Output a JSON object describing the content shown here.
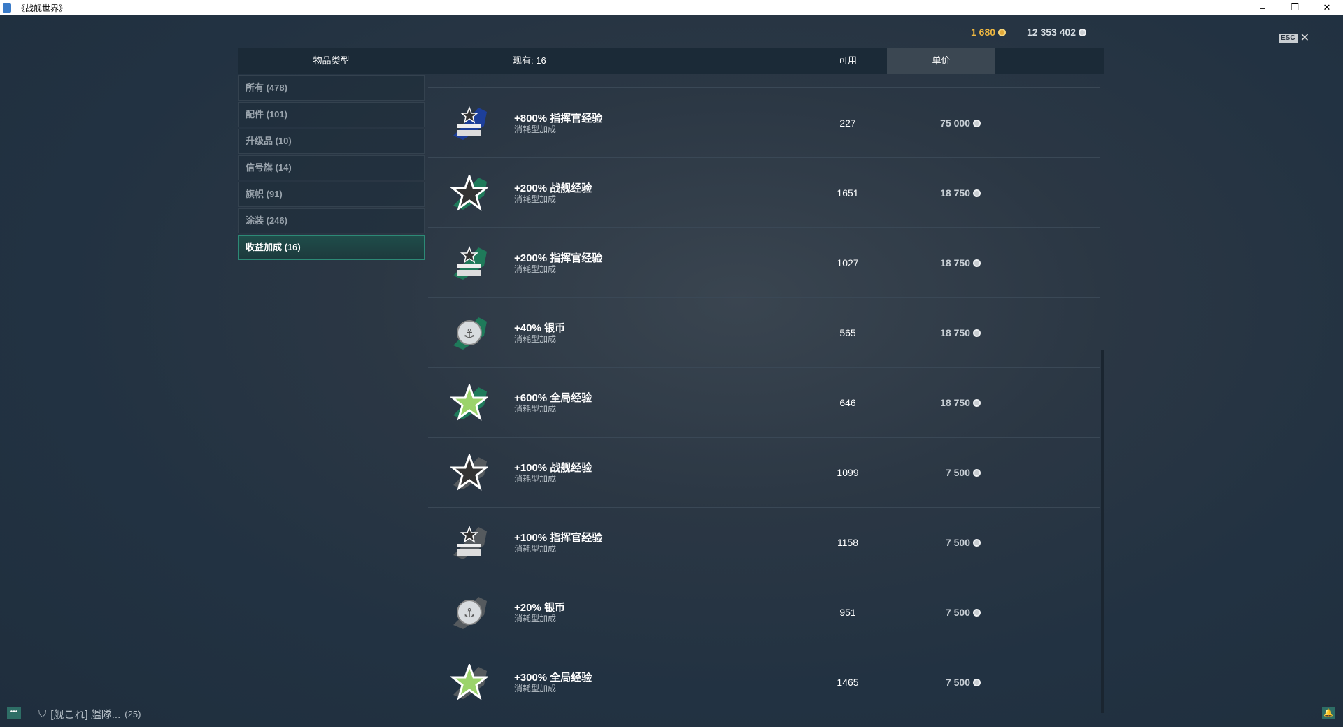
{
  "window": {
    "title": "《战舰世界》",
    "controls": [
      "–",
      "❐",
      "✕"
    ]
  },
  "currency": {
    "gold": "1 680",
    "silver": "12 353 402"
  },
  "esc": {
    "key": "ESC",
    "close": "✕"
  },
  "header": {
    "type_label": "物品类型",
    "count_label": "现有: 16",
    "available_label": "可用",
    "price_label": "单价"
  },
  "sidebar": {
    "items": [
      {
        "label": "所有 (478)"
      },
      {
        "label": "配件 (101)"
      },
      {
        "label": "升级品 (10)"
      },
      {
        "label": "信号旗 (14)"
      },
      {
        "label": "旗帜 (91)"
      },
      {
        "label": "涂装 (246)"
      },
      {
        "label": "收益加成 (16)",
        "active": true
      }
    ]
  },
  "items": [
    {
      "name": "+800% 指挥官经验",
      "type": "消耗型加成",
      "available": "227",
      "price": "75 000",
      "icon": "commander-xp-icon",
      "color": "#1d3f9a"
    },
    {
      "name": "+200% 战舰经验",
      "type": "消耗型加成",
      "available": "1651",
      "price": "18 750",
      "icon": "ship-xp-icon",
      "color": "#1f7a5a"
    },
    {
      "name": "+200% 指挥官经验",
      "type": "消耗型加成",
      "available": "1027",
      "price": "18 750",
      "icon": "commander-xp-icon",
      "color": "#1f7a5a"
    },
    {
      "name": "+40% 银币",
      "type": "消耗型加成",
      "available": "565",
      "price": "18 750",
      "icon": "credits-icon",
      "color": "#1f7a5a"
    },
    {
      "name": "+600% 全局经验",
      "type": "消耗型加成",
      "available": "646",
      "price": "18 750",
      "icon": "free-xp-icon",
      "color": "#1f7a5a"
    },
    {
      "name": "+100% 战舰经验",
      "type": "消耗型加成",
      "available": "1099",
      "price": "7 500",
      "icon": "ship-xp-icon",
      "color": "#555a5e"
    },
    {
      "name": "+100% 指挥官经验",
      "type": "消耗型加成",
      "available": "1158",
      "price": "7 500",
      "icon": "commander-xp-icon",
      "color": "#555a5e"
    },
    {
      "name": "+20% 银币",
      "type": "消耗型加成",
      "available": "951",
      "price": "7 500",
      "icon": "credits-icon",
      "color": "#555a5e"
    },
    {
      "name": "+300% 全局经验",
      "type": "消耗型加成",
      "available": "1465",
      "price": "7 500",
      "icon": "free-xp-icon",
      "color": "#555a5e"
    }
  ],
  "bottom": {
    "clan": "[舰これ] 艦隊...",
    "count": "(25)"
  }
}
